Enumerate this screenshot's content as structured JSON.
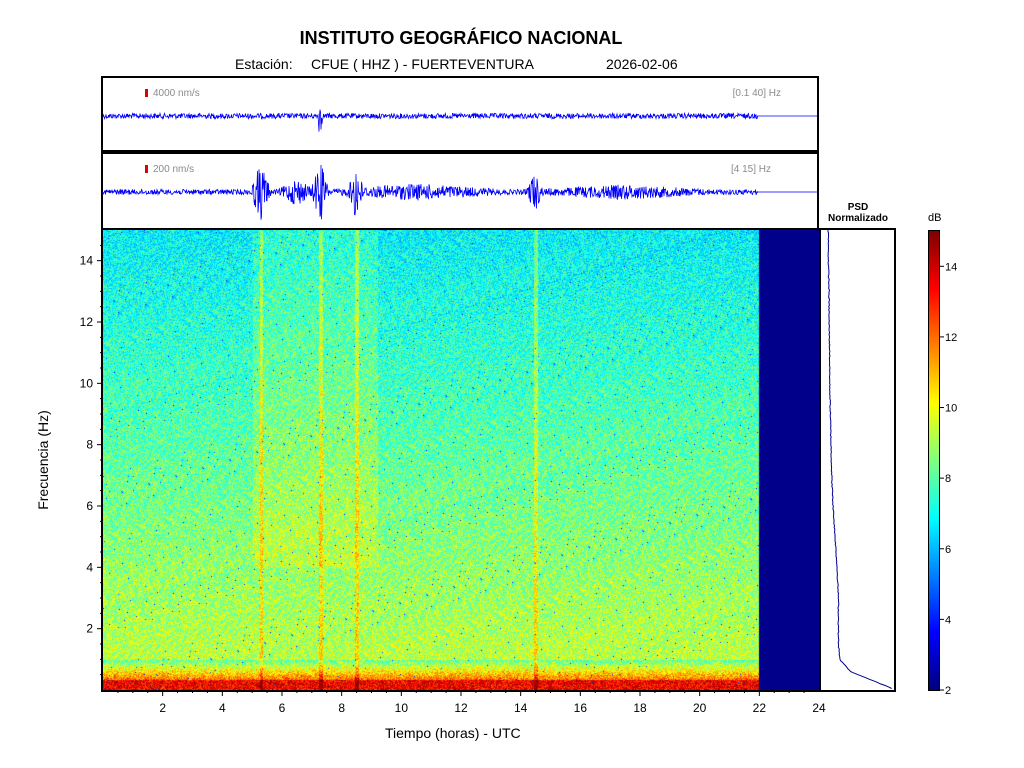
{
  "title": "INSTITUTO GEOGRÁFICO NACIONAL",
  "station_label": "Estación:",
  "station": "CFUE ( HHZ ) - FUERTEVENTURA",
  "date": "2026-02-06",
  "colors": {
    "trace": "#0000ff",
    "no_data": "#00008b",
    "scale_marker": "#e00000",
    "psd_line": "#00008b"
  },
  "traces": [
    {
      "scale": "4000 nm/s",
      "band": "[0.1 40] Hz"
    },
    {
      "scale": "200 nm/s",
      "band": "[4 15] Hz"
    }
  ],
  "psd": {
    "title_line1": "PSD",
    "title_line2": "Normalizado"
  },
  "colorbar": {
    "unit": "dB",
    "min": 2,
    "max": 15,
    "ticks": [
      "2",
      "4",
      "6",
      "8",
      "10",
      "12",
      "14"
    ]
  },
  "chart_data": {
    "type": "heatmap",
    "xlabel": "Tiempo (horas) - UTC",
    "ylabel": "Frecuencia  (Hz)",
    "xlim": [
      0,
      24
    ],
    "ylim": [
      0,
      15
    ],
    "x_ticks": [
      "2",
      "4",
      "6",
      "8",
      "10",
      "12",
      "14",
      "16",
      "18",
      "20",
      "22",
      "24"
    ],
    "y_ticks": [
      "2",
      "4",
      "6",
      "8",
      "10",
      "12",
      "14"
    ],
    "data_end_hour": 22,
    "high_activity_hours": [
      5,
      9.2
    ],
    "events_hours": [
      5.3,
      7.3,
      8.5,
      14.5
    ],
    "psd_normalized": {
      "freq_hz": [
        0.05,
        0.3,
        0.6,
        1.0,
        1.5,
        2.0,
        3.0,
        4.0,
        5.0,
        6.0,
        7.0,
        8.0,
        9.0,
        10.0,
        11.0,
        12.0,
        13.0,
        14.0,
        15.0
      ],
      "value": [
        1.0,
        0.72,
        0.38,
        0.22,
        0.2,
        0.2,
        0.2,
        0.18,
        0.15,
        0.12,
        0.1,
        0.09,
        0.08,
        0.07,
        0.07,
        0.06,
        0.06,
        0.05,
        0.05
      ]
    }
  }
}
